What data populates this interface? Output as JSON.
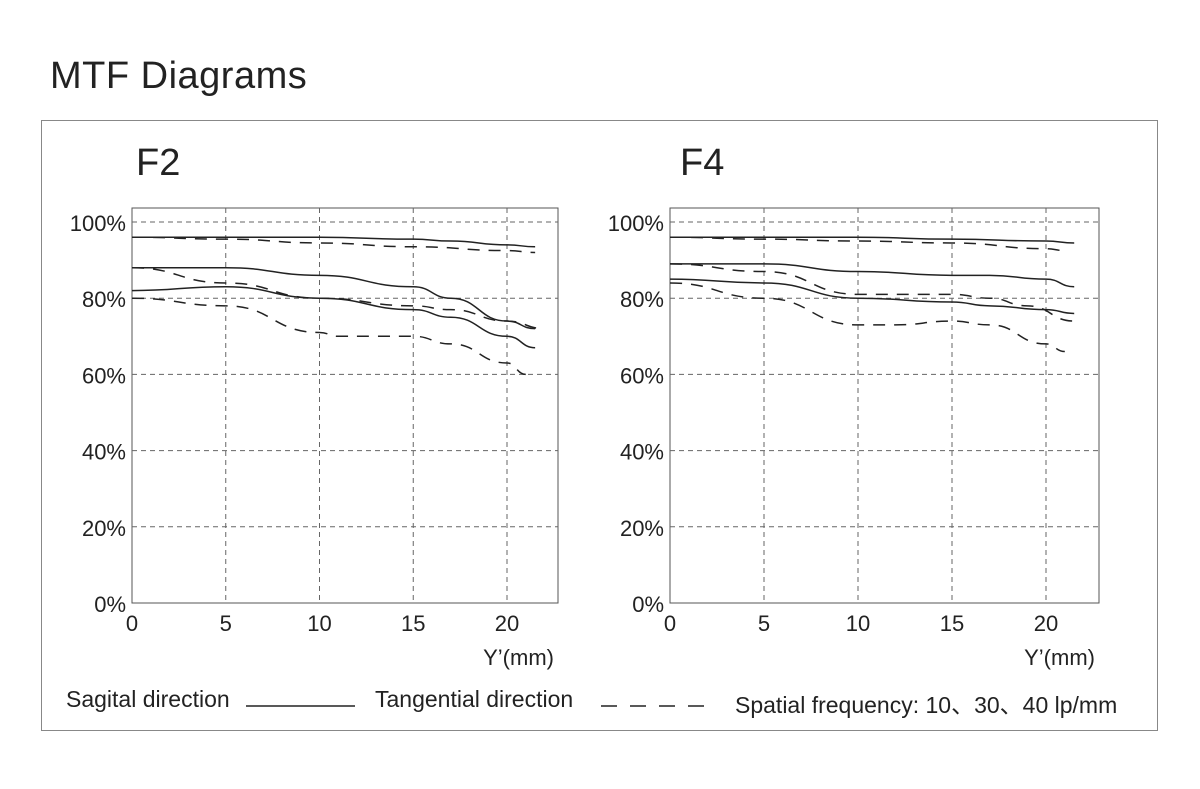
{
  "title": "MTF Diagrams",
  "legend": {
    "sagittal": "Sagital direction",
    "tangential": "Tangential direction",
    "frequency": "Spatial frequency: 10、30、40 lp/mm"
  },
  "chart_data": [
    {
      "type": "line",
      "title": "F2",
      "xlabel": "Y’(mm)",
      "ylabel": "",
      "xlim": [
        0,
        22.5
      ],
      "ylim": [
        0,
        100
      ],
      "xticks": [
        0,
        5,
        10,
        15,
        20
      ],
      "yticks": [
        0,
        20,
        40,
        60,
        80,
        100
      ],
      "ytick_labels": [
        "0%",
        "20%",
        "40%",
        "60%",
        "80%",
        "100%"
      ],
      "grid": true,
      "series": [
        {
          "name": "10 lp/mm Sagittal",
          "style": "solid",
          "x": [
            0,
            5,
            10,
            15,
            17,
            20,
            21.5
          ],
          "y": [
            96,
            96,
            96,
            95.5,
            95,
            94,
            93.5
          ]
        },
        {
          "name": "10 lp/mm Tangential",
          "style": "dashed",
          "x": [
            0,
            5,
            10,
            15,
            20,
            21.5
          ],
          "y": [
            96,
            95.5,
            94.5,
            93.5,
            92.5,
            92
          ]
        },
        {
          "name": "30 lp/mm Sagittal",
          "style": "solid",
          "x": [
            0,
            5,
            10,
            15,
            17,
            20,
            21.5
          ],
          "y": [
            88,
            88,
            86,
            83,
            80,
            74,
            72
          ]
        },
        {
          "name": "30 lp/mm Tangential",
          "style": "dashed",
          "x": [
            0,
            5,
            10,
            15,
            17,
            20,
            22
          ],
          "y": [
            88,
            84,
            80,
            78,
            77,
            74,
            72
          ]
        },
        {
          "name": "40 lp/mm Sagittal",
          "style": "solid",
          "x": [
            0,
            5,
            10,
            15,
            17,
            20,
            21.5
          ],
          "y": [
            82,
            83,
            80,
            77,
            75,
            70,
            67
          ]
        },
        {
          "name": "40 lp/mm Tangential",
          "style": "dashed",
          "x": [
            0,
            5,
            10,
            11,
            13,
            15,
            17,
            20,
            21
          ],
          "y": [
            80,
            78,
            71,
            70,
            70,
            70,
            68,
            63,
            60
          ]
        }
      ]
    },
    {
      "type": "line",
      "title": "F4",
      "xlabel": "Y’(mm)",
      "ylabel": "",
      "xlim": [
        0,
        22.5
      ],
      "ylim": [
        0,
        100
      ],
      "xticks": [
        0,
        5,
        10,
        15,
        20
      ],
      "yticks": [
        0,
        20,
        40,
        60,
        80,
        100
      ],
      "ytick_labels": [
        "0%",
        "20%",
        "40%",
        "60%",
        "80%",
        "100%"
      ],
      "grid": true,
      "series": [
        {
          "name": "10 lp/mm Sagittal",
          "style": "solid",
          "x": [
            0,
            5,
            10,
            15,
            20,
            21.5
          ],
          "y": [
            96,
            96,
            96,
            95.5,
            95,
            94.5
          ]
        },
        {
          "name": "10 lp/mm Tangential",
          "style": "dashed",
          "x": [
            0,
            5,
            10,
            15,
            20,
            21
          ],
          "y": [
            96,
            95.5,
            95,
            94.5,
            93,
            92.5
          ]
        },
        {
          "name": "30 lp/mm Sagittal",
          "style": "solid",
          "x": [
            0,
            5,
            10,
            15,
            17,
            20,
            21.5
          ],
          "y": [
            89,
            89,
            87,
            86,
            86,
            85,
            83
          ]
        },
        {
          "name": "30 lp/mm Tangential",
          "style": "dashed",
          "x": [
            0,
            5,
            10,
            15,
            17,
            19,
            21.5
          ],
          "y": [
            89,
            87,
            81,
            81,
            80,
            78,
            74
          ]
        },
        {
          "name": "40 lp/mm Sagittal",
          "style": "solid",
          "x": [
            0,
            5,
            10,
            15,
            17,
            20,
            21.5
          ],
          "y": [
            85,
            84,
            80,
            79,
            78,
            77,
            76
          ]
        },
        {
          "name": "40 lp/mm Tangential",
          "style": "dashed",
          "x": [
            0,
            5,
            10,
            12,
            15,
            17,
            20,
            21
          ],
          "y": [
            84,
            80,
            73,
            73,
            74,
            73,
            68,
            66
          ]
        }
      ]
    }
  ]
}
